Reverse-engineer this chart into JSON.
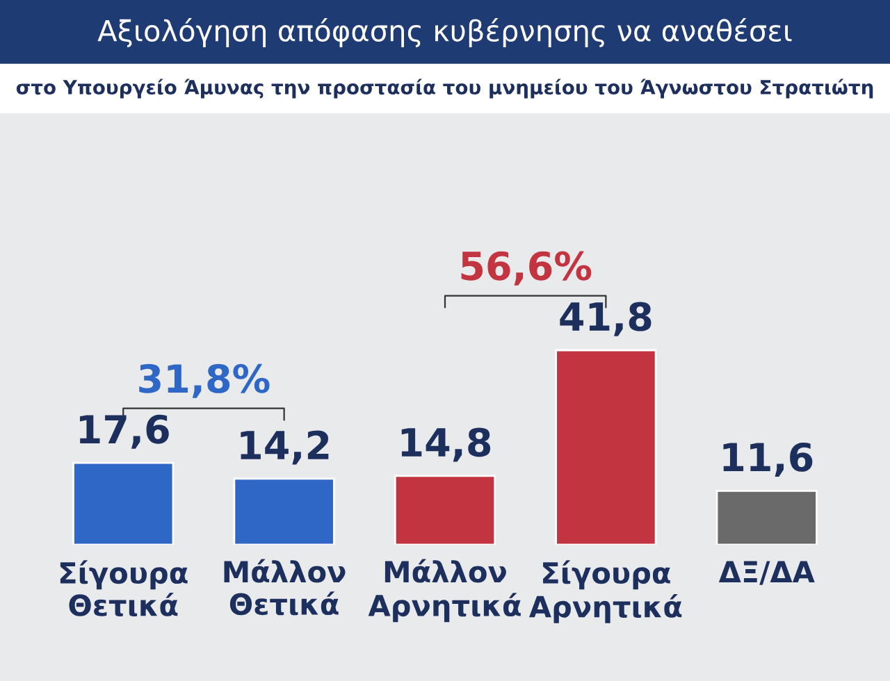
{
  "chart_data": {
    "type": "bar",
    "title": "Αξιολόγηση απόφασης κυβέρνησης να αναθέσει",
    "subtitle": "στο Υπουργείο Άμυνας την προστασία του μνημείου του Άγνωστου Στρατιώτη",
    "categories": [
      "Σίγουρα\nΘετικά",
      "Μάλλον\nΘετικά",
      "Μάλλον\nΑρνητικά",
      "Σίγουρα\nΑρνητικά",
      "ΔΞ/ΔΑ"
    ],
    "values": [
      17.6,
      14.2,
      14.8,
      41.8,
      11.6
    ],
    "value_labels": [
      "17,6",
      "14,2",
      "14,8",
      "41,8",
      "11,6"
    ],
    "colors": [
      "#2f67c6",
      "#2f67c6",
      "#c13440",
      "#c13440",
      "#6a6a6a"
    ],
    "annotations": [
      "31,8%",
      "56,6%"
    ],
    "grid": false,
    "legend": false
  }
}
